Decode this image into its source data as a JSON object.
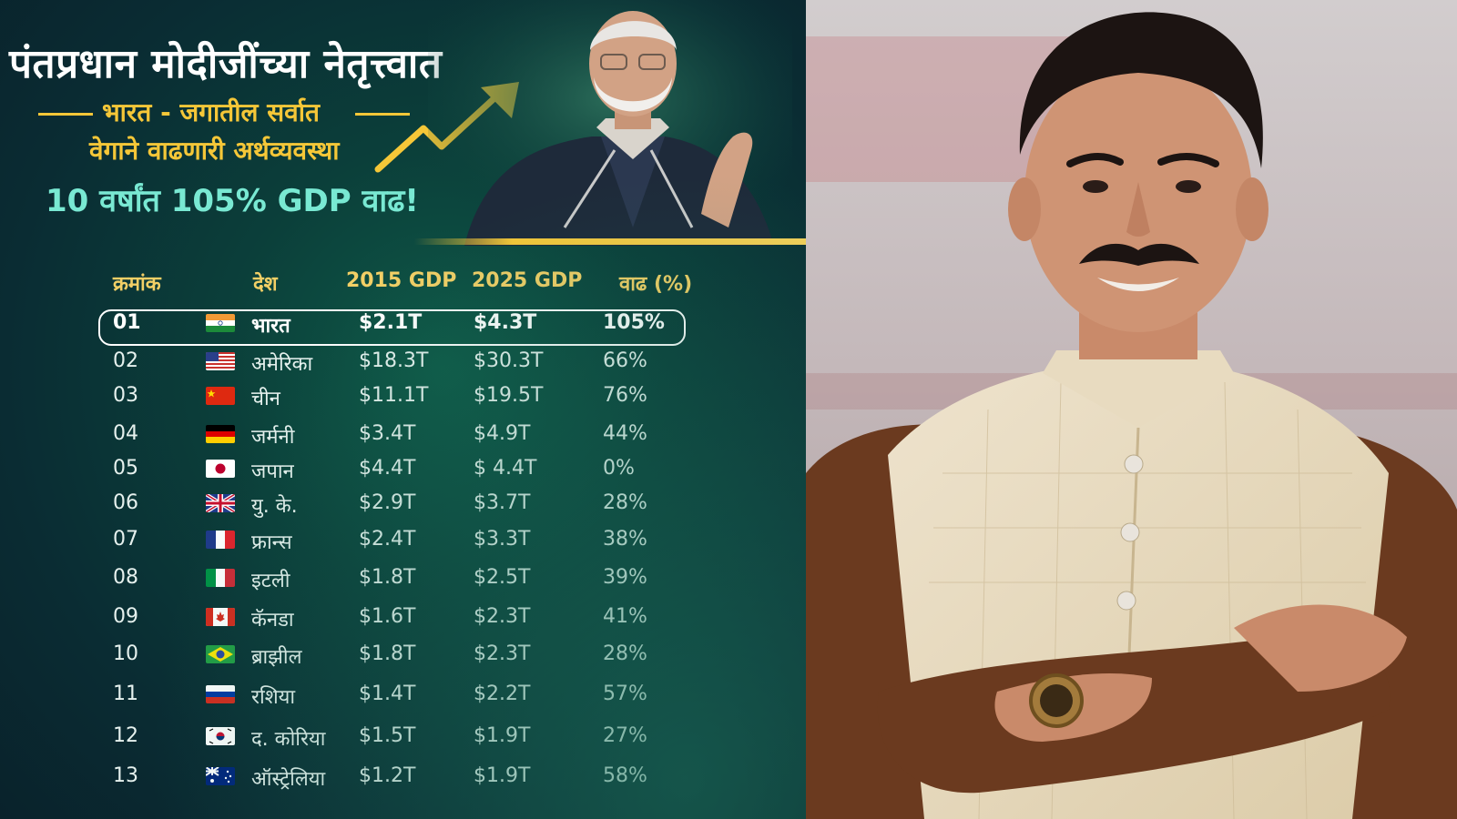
{
  "poster": {
    "headline": "पंतप्रधान मोदीजींच्या नेतृत्त्वात",
    "subline_1": "भारत - जगातील सर्वात",
    "subline_2": "वेगाने वाढणारी अर्थव्यवस्था",
    "growth_line": "10 वर्षांत 105% GDP वाढ!",
    "colors": {
      "accent_gold": "#f5c738",
      "accent_teal": "#79e9d3",
      "background": "#0b3f3a"
    }
  },
  "table": {
    "headers": [
      "क्रमांक",
      "देश",
      "2015 GDP",
      "2025 GDP",
      "वाढ (%)"
    ],
    "rows": [
      {
        "rank": "01",
        "flag": "india-flag",
        "country": "भारत",
        "gdp_2015": "$2.1T",
        "gdp_2025": "$4.3T",
        "growth": "105%"
      },
      {
        "rank": "02",
        "flag": "usa-flag",
        "country": "अमेरिका",
        "gdp_2015": "$18.3T",
        "gdp_2025": "$30.3T",
        "growth": "66%"
      },
      {
        "rank": "03",
        "flag": "china-flag",
        "country": "चीन",
        "gdp_2015": "$11.1T",
        "gdp_2025": "$19.5T",
        "growth": "76%"
      },
      {
        "rank": "04",
        "flag": "germany-flag",
        "country": "जर्मनी",
        "gdp_2015": "$3.4T",
        "gdp_2025": "$4.9T",
        "growth": "44%"
      },
      {
        "rank": "05",
        "flag": "japan-flag",
        "country": "जपान",
        "gdp_2015": "$4.4T",
        "gdp_2025": "$ 4.4T",
        "growth": "0%"
      },
      {
        "rank": "06",
        "flag": "uk-flag",
        "country": "यु. के.",
        "gdp_2015": "$2.9T",
        "gdp_2025": "$3.7T",
        "growth": "28%"
      },
      {
        "rank": "07",
        "flag": "france-flag",
        "country": "फ्रान्स",
        "gdp_2015": "$2.4T",
        "gdp_2025": "$3.3T",
        "growth": "38%"
      },
      {
        "rank": "08",
        "flag": "italy-flag",
        "country": "इटली",
        "gdp_2015": "$1.8T",
        "gdp_2025": "$2.5T",
        "growth": "39%"
      },
      {
        "rank": "09",
        "flag": "canada-flag",
        "country": "कॅनडा",
        "gdp_2015": "$1.6T",
        "gdp_2025": "$2.3T",
        "growth": "41%"
      },
      {
        "rank": "10",
        "flag": "brazil-flag",
        "country": "ब्राझील",
        "gdp_2015": "$1.8T",
        "gdp_2025": "$2.3T",
        "growth": "28%"
      },
      {
        "rank": "11",
        "flag": "russia-flag",
        "country": "रशिया",
        "gdp_2015": "$1.4T",
        "gdp_2025": "$2.2T",
        "growth": "57%"
      },
      {
        "rank": "12",
        "flag": "south-korea-flag",
        "country": "द. कोरिया",
        "gdp_2015": "$1.5T",
        "gdp_2025": "$1.9T",
        "growth": "27%"
      },
      {
        "rank": "13",
        "flag": "australia-flag",
        "country": "ऑस्ट्रेलिया",
        "gdp_2015": "$1.2T",
        "gdp_2025": "$1.9T",
        "growth": "58%"
      }
    ]
  }
}
